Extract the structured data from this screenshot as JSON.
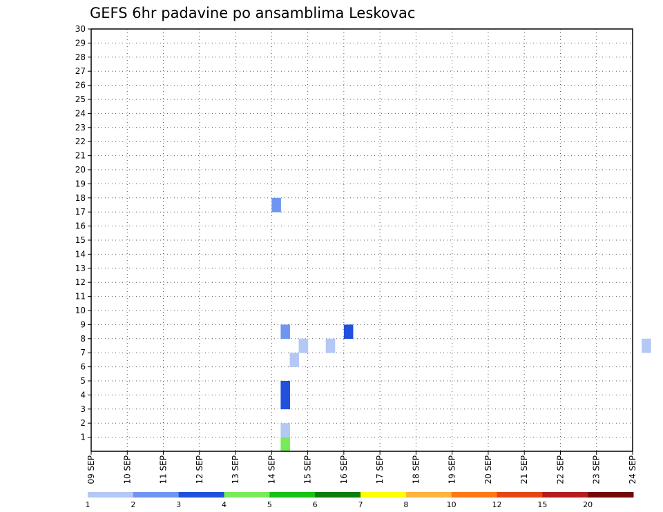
{
  "chart_data": {
    "type": "heatmap",
    "title": "GEFS 6hr padavine po ansamblima Leskovac",
    "y_ticks": [
      "1",
      "2",
      "3",
      "4",
      "5",
      "6",
      "7",
      "8",
      "9",
      "10",
      "11",
      "12",
      "13",
      "14",
      "15",
      "16",
      "17",
      "18",
      "19",
      "20",
      "21",
      "22",
      "23",
      "24",
      "25",
      "26",
      "27",
      "28",
      "29",
      "30"
    ],
    "x_ticks": [
      "09 SEP",
      "10 SEP",
      "11 SEP",
      "12 SEP",
      "13 SEP",
      "14 SEP",
      "15 SEP",
      "16 SEP",
      "17 SEP",
      "18 SEP",
      "19 SEP",
      "20 SEP",
      "21 SEP",
      "22 SEP",
      "23 SEP",
      "24 SEP"
    ],
    "x_range_days": [
      0,
      15
    ],
    "y_range": [
      0,
      30
    ],
    "grid": "dotted",
    "colorbar": {
      "labels": [
        "1",
        "2",
        "3",
        "4",
        "5",
        "6",
        "7",
        "8",
        "10",
        "12",
        "15",
        "20"
      ],
      "colors": [
        "#b4c8f6",
        "#6e96f0",
        "#2050dc",
        "#78eb5a",
        "#14c314",
        "#0a7d0a",
        "#ffff00",
        "#ffb43c",
        "#ff7814",
        "#e64614",
        "#b41e1e",
        "#730a0a"
      ]
    },
    "cells": [
      {
        "day": 5.25,
        "member": 0,
        "bin": 3
      },
      {
        "day": 5.25,
        "member": 1,
        "bin": 0
      },
      {
        "day": 5.0,
        "member": 17,
        "bin": 1
      },
      {
        "day": 5.25,
        "member": 4,
        "bin": 2
      },
      {
        "day": 5.25,
        "member": 3,
        "bin": 2
      },
      {
        "day": 5.25,
        "member": 8,
        "bin": 1
      },
      {
        "day": 6.5,
        "member": 7,
        "bin": 0
      },
      {
        "day": 5.5,
        "member": 6,
        "bin": 0
      },
      {
        "day": 5.75,
        "member": 7,
        "bin": 0
      },
      {
        "day": 7.0,
        "member": 8,
        "bin": 2
      },
      {
        "day": 15.25,
        "member": 7,
        "bin": 0
      }
    ]
  }
}
